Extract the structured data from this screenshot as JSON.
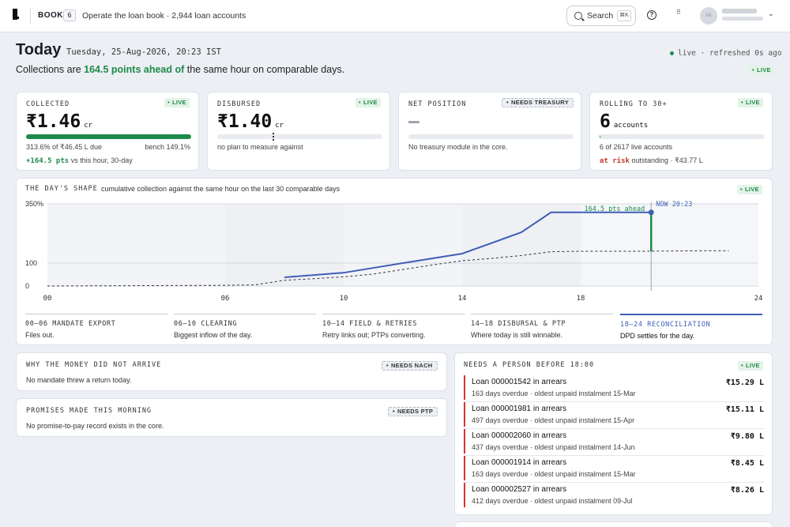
{
  "topbar": {
    "book_label": "BOOK",
    "book_count": "6",
    "book_desc": "Operate the loan book · 2,944 loan accounts",
    "search_label": "Search",
    "search_shortcut": "⌘K",
    "avatar_initials": "AK",
    "icons": [
      "search-icon",
      "help-icon",
      "grid-icon",
      "chevron-down-icon"
    ]
  },
  "header": {
    "title": "Today",
    "date": "Tuesday, 25-Aug-2026, 20:23 IST",
    "status": "live · refreshed 0s ago",
    "headline_pre": "Collections are ",
    "headline_highlight": "164.5 points ahead of",
    "headline_post": " the same hour on comparable days.",
    "live": "LIVE"
  },
  "kpis": {
    "collected": {
      "label": "COLLECTED",
      "badge": "LIVE",
      "value": "₹1.46",
      "unit": "cr",
      "progress": 1.0,
      "due": "313.6% of ₹46.45 L due",
      "bench": "bench 149.1%",
      "delta": "+164.5 pts",
      "delta_suffix": " vs this hour, 30-day"
    },
    "disbursed": {
      "label": "DISBURSED",
      "badge": "LIVE",
      "value": "₹1.40",
      "unit": "cr",
      "progress": 0,
      "note": "no plan to measure against"
    },
    "net": {
      "label": "NET POSITION",
      "badge": "NEEDS TREASURY",
      "value": "—",
      "note": "No treasury module in the core."
    },
    "rolling": {
      "label": "ROLLING TO 30+",
      "badge": "LIVE",
      "value": "6",
      "unit": "accounts",
      "progress": 0.0023,
      "of": "6 of 2617 live accounts",
      "risk": "at risk",
      "risk_suffix": " outstanding · ₹43.77 L"
    }
  },
  "chart": {
    "label": "THE DAY'S SHAPE",
    "subtitle": "cumulative collection against the same hour on the last 30 comparable days",
    "badge": "LIVE",
    "annotation": "164.5 pts ahead",
    "now_label": "NOW 20:23",
    "segments": [
      {
        "t": "00–06 MANDATE EXPORT",
        "d": "Files out."
      },
      {
        "t": "06–10 CLEARING",
        "d": "Biggest inflow of the day."
      },
      {
        "t": "10–14 FIELD & RETRIES",
        "d": "Retry links out; PTPs converting."
      },
      {
        "t": "14–18 DISBURSAL & PTP",
        "d": "Where today is still winnable."
      },
      {
        "t": "18–24 RECONCILIATION",
        "d": "DPD settles for the day."
      }
    ]
  },
  "chart_data": {
    "type": "line",
    "title": "THE DAY'S SHAPE",
    "subtitle": "cumulative collection against the same hour on the last 30 comparable days",
    "xlim": [
      0,
      24
    ],
    "ylim": [
      0,
      350
    ],
    "x_ticks": [
      "00",
      "06",
      "10",
      "14",
      "18",
      "24"
    ],
    "x_tick_values": [
      0,
      6,
      10,
      14,
      18,
      24
    ],
    "y_ticks": [
      "0",
      "100",
      "350%"
    ],
    "y_tick_values": [
      0,
      100,
      350
    ],
    "series": [
      {
        "values": [
          [
            8,
            38
          ],
          [
            10,
            58
          ],
          [
            12,
            100
          ],
          [
            14,
            140
          ],
          [
            16,
            230
          ],
          [
            17,
            314
          ],
          [
            20.4,
            314
          ]
        ],
        "color": "#3f5fb6"
      },
      {
        "values": [
          [
            0,
            0
          ],
          [
            2,
            1
          ],
          [
            4,
            2
          ],
          [
            6,
            3
          ],
          [
            7,
            5
          ],
          [
            8,
            25
          ],
          [
            9,
            32
          ],
          [
            10,
            40
          ],
          [
            11,
            52
          ],
          [
            12,
            72
          ],
          [
            13,
            92
          ],
          [
            14,
            110
          ],
          [
            15,
            120
          ],
          [
            16,
            132
          ],
          [
            17,
            148
          ],
          [
            18,
            150
          ],
          [
            20,
            150
          ],
          [
            22,
            152
          ],
          [
            23,
            152
          ]
        ],
        "color": "#333333"
      }
    ],
    "now_x": 20.38,
    "gap": {
      "x": 20.38,
      "from": 150,
      "to": 314
    }
  },
  "reasons": {
    "label": "WHY THE MONEY DID NOT ARRIVE",
    "badge": "NEEDS NACH",
    "text": "No mandate threw a return today."
  },
  "promises": {
    "label": "PROMISES MADE THIS MORNING",
    "badge": "NEEDS PTP",
    "text": "No promise-to-pay record exists in the core."
  },
  "needs": {
    "label": "NEEDS A PERSON BEFORE 18:00",
    "badge": "LIVE",
    "rows": [
      {
        "title": "Loan 000001542 in arrears",
        "sub": "163 days overdue · oldest unpaid instalment 15-Mar",
        "amt": "₹15.29 L"
      },
      {
        "title": "Loan 000001981 in arrears",
        "sub": "497 days overdue · oldest unpaid instalment 15-Apr",
        "amt": "₹15.11 L"
      },
      {
        "title": "Loan 000002060 in arrears",
        "sub": "437 days overdue · oldest unpaid instalment 14-Jun",
        "amt": "₹9.80 L"
      },
      {
        "title": "Loan 000001914 in arrears",
        "sub": "163 days overdue · oldest unpaid instalment 15-Mar",
        "amt": "₹8.45 L"
      },
      {
        "title": "Loan 000002527 in arrears",
        "sub": "412 days overdue · oldest unpaid instalment 09-Jul",
        "amt": "₹8.26 L"
      }
    ]
  },
  "colors": {
    "accent": "#3f5fb6",
    "positive": "#1e8a4a",
    "alert": "#d9342b"
  }
}
